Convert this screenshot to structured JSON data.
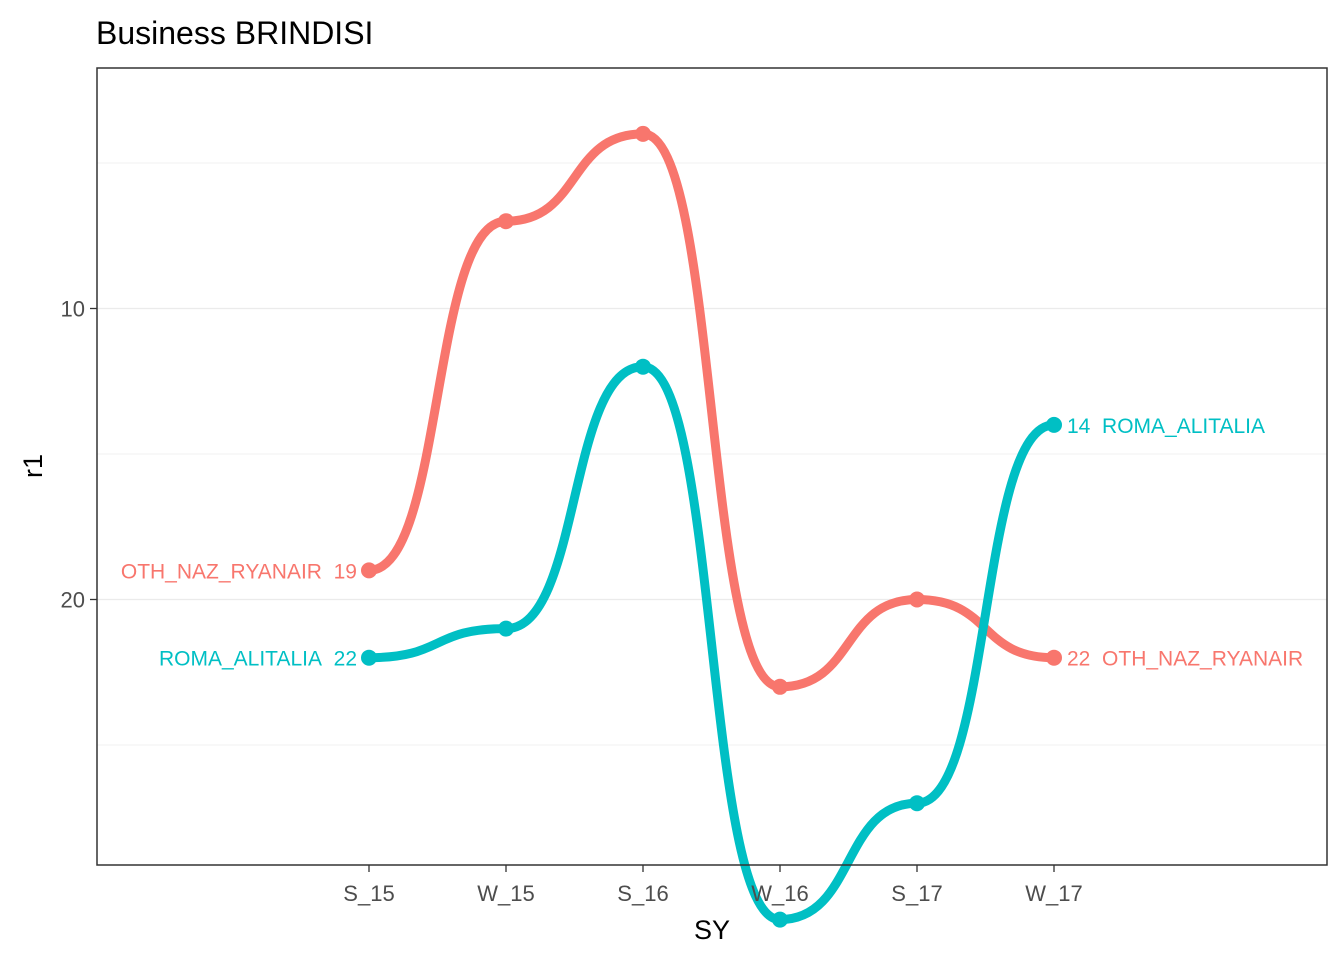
{
  "chart_data": {
    "type": "line",
    "title": "Business BRINDISI",
    "xlabel": "SY",
    "ylabel": "r1",
    "categories": [
      "S_15",
      "W_15",
      "S_16",
      "W_16",
      "S_17",
      "W_17"
    ],
    "y_reversed": true,
    "ylim": [
      31.5,
      4.5
    ],
    "y_ticks": [
      10,
      20
    ],
    "y_minor_gridlines": [
      5,
      15,
      25
    ],
    "grid": "horizontal",
    "line_style": "smoothed-step (bump chart)",
    "series": [
      {
        "name": "OTH_NAZ_RYANAIR",
        "color": "#F8766D",
        "values": [
          19,
          7,
          4,
          23,
          20,
          22
        ],
        "start_label": "OTH_NAZ_RYANAIR",
        "start_value_label": "19",
        "end_label": "OTH_NAZ_RYANAIR",
        "end_value_label": "22"
      },
      {
        "name": "ROMA_ALITALIA",
        "color": "#00BFC4",
        "values": [
          22,
          21,
          12,
          31,
          27,
          14
        ],
        "start_label": "ROMA_ALITALIA",
        "start_value_label": "22",
        "end_label": "ROMA_ALITALIA",
        "end_value_label": "14"
      }
    ]
  }
}
